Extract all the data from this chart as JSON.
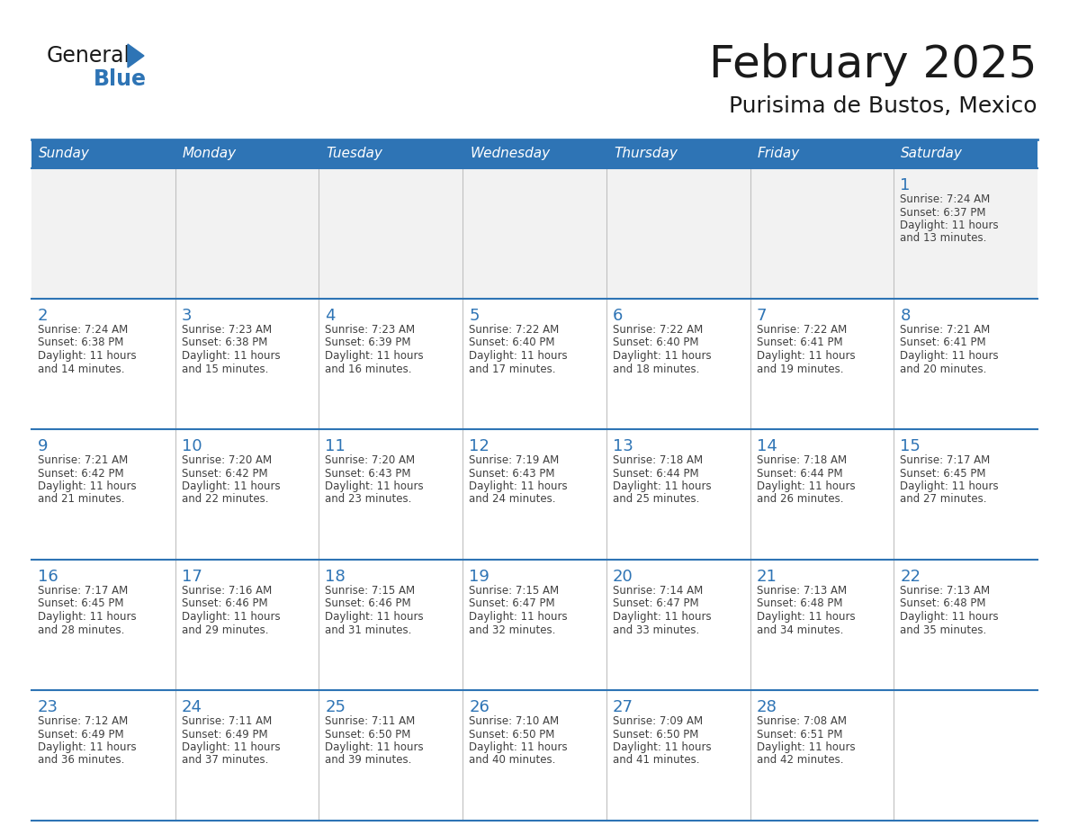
{
  "title": "February 2025",
  "subtitle": "Purisima de Bustos, Mexico",
  "days_of_week": [
    "Sunday",
    "Monday",
    "Tuesday",
    "Wednesday",
    "Thursday",
    "Friday",
    "Saturday"
  ],
  "header_bg": "#2E74B5",
  "header_text": "#FFFFFF",
  "cell_bg_light": "#FFFFFF",
  "cell_bg_gray": "#F2F2F2",
  "body_text_color": "#404040",
  "day_num_color": "#2E74B5",
  "divider_color": "#2E74B5",
  "grid_line_color": "#C0C0C0",
  "title_color": "#1A1A1A",
  "subtitle_color": "#1A1A1A",
  "logo_general_color": "#1A1A1A",
  "logo_blue_color": "#2E74B5",
  "calendar_data": [
    [
      null,
      null,
      null,
      null,
      null,
      null,
      {
        "day": 1,
        "sunrise": "7:24 AM",
        "sunset": "6:37 PM",
        "daylight_hours": 11,
        "daylight_minutes": 13
      }
    ],
    [
      {
        "day": 2,
        "sunrise": "7:24 AM",
        "sunset": "6:38 PM",
        "daylight_hours": 11,
        "daylight_minutes": 14
      },
      {
        "day": 3,
        "sunrise": "7:23 AM",
        "sunset": "6:38 PM",
        "daylight_hours": 11,
        "daylight_minutes": 15
      },
      {
        "day": 4,
        "sunrise": "7:23 AM",
        "sunset": "6:39 PM",
        "daylight_hours": 11,
        "daylight_minutes": 16
      },
      {
        "day": 5,
        "sunrise": "7:22 AM",
        "sunset": "6:40 PM",
        "daylight_hours": 11,
        "daylight_minutes": 17
      },
      {
        "day": 6,
        "sunrise": "7:22 AM",
        "sunset": "6:40 PM",
        "daylight_hours": 11,
        "daylight_minutes": 18
      },
      {
        "day": 7,
        "sunrise": "7:22 AM",
        "sunset": "6:41 PM",
        "daylight_hours": 11,
        "daylight_minutes": 19
      },
      {
        "day": 8,
        "sunrise": "7:21 AM",
        "sunset": "6:41 PM",
        "daylight_hours": 11,
        "daylight_minutes": 20
      }
    ],
    [
      {
        "day": 9,
        "sunrise": "7:21 AM",
        "sunset": "6:42 PM",
        "daylight_hours": 11,
        "daylight_minutes": 21
      },
      {
        "day": 10,
        "sunrise": "7:20 AM",
        "sunset": "6:42 PM",
        "daylight_hours": 11,
        "daylight_minutes": 22
      },
      {
        "day": 11,
        "sunrise": "7:20 AM",
        "sunset": "6:43 PM",
        "daylight_hours": 11,
        "daylight_minutes": 23
      },
      {
        "day": 12,
        "sunrise": "7:19 AM",
        "sunset": "6:43 PM",
        "daylight_hours": 11,
        "daylight_minutes": 24
      },
      {
        "day": 13,
        "sunrise": "7:18 AM",
        "sunset": "6:44 PM",
        "daylight_hours": 11,
        "daylight_minutes": 25
      },
      {
        "day": 14,
        "sunrise": "7:18 AM",
        "sunset": "6:44 PM",
        "daylight_hours": 11,
        "daylight_minutes": 26
      },
      {
        "day": 15,
        "sunrise": "7:17 AM",
        "sunset": "6:45 PM",
        "daylight_hours": 11,
        "daylight_minutes": 27
      }
    ],
    [
      {
        "day": 16,
        "sunrise": "7:17 AM",
        "sunset": "6:45 PM",
        "daylight_hours": 11,
        "daylight_minutes": 28
      },
      {
        "day": 17,
        "sunrise": "7:16 AM",
        "sunset": "6:46 PM",
        "daylight_hours": 11,
        "daylight_minutes": 29
      },
      {
        "day": 18,
        "sunrise": "7:15 AM",
        "sunset": "6:46 PM",
        "daylight_hours": 11,
        "daylight_minutes": 31
      },
      {
        "day": 19,
        "sunrise": "7:15 AM",
        "sunset": "6:47 PM",
        "daylight_hours": 11,
        "daylight_minutes": 32
      },
      {
        "day": 20,
        "sunrise": "7:14 AM",
        "sunset": "6:47 PM",
        "daylight_hours": 11,
        "daylight_minutes": 33
      },
      {
        "day": 21,
        "sunrise": "7:13 AM",
        "sunset": "6:48 PM",
        "daylight_hours": 11,
        "daylight_minutes": 34
      },
      {
        "day": 22,
        "sunrise": "7:13 AM",
        "sunset": "6:48 PM",
        "daylight_hours": 11,
        "daylight_minutes": 35
      }
    ],
    [
      {
        "day": 23,
        "sunrise": "7:12 AM",
        "sunset": "6:49 PM",
        "daylight_hours": 11,
        "daylight_minutes": 36
      },
      {
        "day": 24,
        "sunrise": "7:11 AM",
        "sunset": "6:49 PM",
        "daylight_hours": 11,
        "daylight_minutes": 37
      },
      {
        "day": 25,
        "sunrise": "7:11 AM",
        "sunset": "6:50 PM",
        "daylight_hours": 11,
        "daylight_minutes": 39
      },
      {
        "day": 26,
        "sunrise": "7:10 AM",
        "sunset": "6:50 PM",
        "daylight_hours": 11,
        "daylight_minutes": 40
      },
      {
        "day": 27,
        "sunrise": "7:09 AM",
        "sunset": "6:50 PM",
        "daylight_hours": 11,
        "daylight_minutes": 41
      },
      {
        "day": 28,
        "sunrise": "7:08 AM",
        "sunset": "6:51 PM",
        "daylight_hours": 11,
        "daylight_minutes": 42
      },
      null
    ]
  ]
}
